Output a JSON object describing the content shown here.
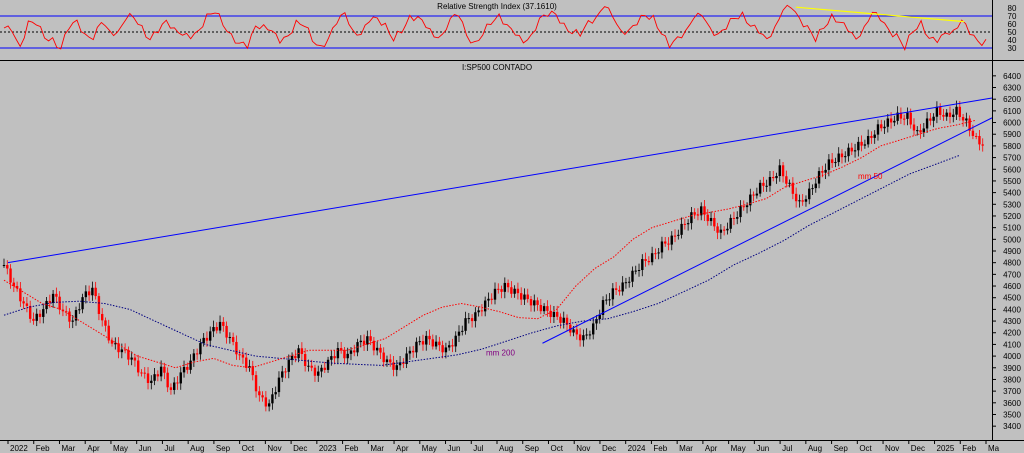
{
  "colors": {
    "background": "#c0c0c0",
    "rsi_line": "#ff0000",
    "price_up": "#000000",
    "price_down": "#ff0000",
    "trendline": "#0000ff",
    "rsi_trend": "#ffff00",
    "ma50": "#ff0000",
    "ma200": "#000080",
    "ma200_label": "#800080"
  },
  "chart_data": [
    {
      "type": "line",
      "panel": "rsi",
      "title": "Relative Strength Index (37.1610)",
      "ylim": [
        20,
        85
      ],
      "y_ticks": [
        80,
        70,
        60,
        50,
        40,
        30
      ],
      "levels": [
        {
          "value": 70,
          "style": "solid"
        },
        {
          "value": 50,
          "style": "dotted"
        },
        {
          "value": 30,
          "style": "solid"
        }
      ],
      "series": [
        {
          "values": [
            55,
            48,
            35,
            62,
            58,
            45,
            40,
            30,
            55,
            62,
            50,
            40,
            60,
            55,
            48,
            65,
            70,
            55,
            42,
            50,
            62,
            58,
            45,
            40,
            55,
            70,
            74,
            60,
            45,
            38,
            30,
            55,
            62,
            50,
            35,
            48,
            62,
            58,
            40,
            30,
            45,
            60,
            72,
            55,
            45,
            62,
            70,
            58,
            40,
            50,
            68,
            72,
            55,
            42,
            50,
            65,
            70,
            48,
            35,
            48,
            60,
            70,
            62,
            45,
            35,
            50,
            65,
            70,
            74,
            58,
            50,
            45,
            62,
            72,
            80,
            68,
            55,
            50,
            60,
            72,
            68,
            50,
            30,
            42,
            55,
            65,
            70,
            58,
            45,
            55,
            68,
            72,
            60,
            48,
            40,
            60,
            75,
            80,
            70,
            55,
            40,
            55,
            70,
            65,
            50,
            40,
            60,
            72,
            65,
            55,
            45,
            30,
            50,
            62,
            45,
            35,
            48,
            55,
            62,
            48,
            40,
            38
          ]
        }
      ],
      "annotations": [
        {
          "type": "trendline",
          "color": "yellow",
          "from": {
            "x": "2024-07",
            "y": 81
          },
          "to": {
            "x": "2025-02",
            "y": 63
          }
        }
      ]
    },
    {
      "type": "candlestick",
      "panel": "price",
      "title": "I:SP500 CONTADO",
      "ylim": [
        3350,
        6450
      ],
      "y_ticks": [
        3400,
        3500,
        3600,
        3700,
        3800,
        3900,
        4000,
        4100,
        4200,
        4300,
        4400,
        4500,
        4600,
        4700,
        4800,
        4900,
        5000,
        5100,
        5200,
        5300,
        5400,
        5500,
        5600,
        5700,
        5800,
        5900,
        6000,
        6100,
        6200,
        6300,
        6400
      ],
      "x_labels": [
        "2022",
        "Feb",
        "Mar",
        "Apr",
        "May",
        "Jun",
        "Jul",
        "Aug",
        "Sep",
        "Oct",
        "Nov",
        "Dec",
        "2023",
        "Feb",
        "Mar",
        "Apr",
        "May",
        "Jun",
        "Jul",
        "Aug",
        "Sep",
        "Oct",
        "Nov",
        "Dec",
        "2024",
        "Feb",
        "Mar",
        "Apr",
        "May",
        "Jun",
        "Jul",
        "Aug",
        "Sep",
        "Oct",
        "Nov",
        "Dec",
        "2025",
        "Feb",
        "Ma"
      ],
      "closes": [
        4780,
        4600,
        4450,
        4300,
        4400,
        4530,
        4380,
        4300,
        4500,
        4580,
        4300,
        4100,
        4050,
        3980,
        3850,
        3780,
        3900,
        3700,
        3850,
        3950,
        4100,
        4200,
        4280,
        4150,
        4000,
        3900,
        3650,
        3580,
        3800,
        3950,
        4050,
        3900,
        3850,
        3950,
        4050,
        4000,
        4100,
        4150,
        4050,
        3950,
        3900,
        4000,
        4100,
        4150,
        4100,
        4050,
        4150,
        4300,
        4350,
        4450,
        4550,
        4600,
        4550,
        4500,
        4450,
        4400,
        4350,
        4300,
        4200,
        4150,
        4250,
        4450,
        4550,
        4600,
        4700,
        4800,
        4850,
        4950,
        5000,
        5100,
        5200,
        5250,
        5150,
        5050,
        5150,
        5250,
        5350,
        5450,
        5500,
        5600,
        5450,
        5300,
        5400,
        5550,
        5650,
        5700,
        5750,
        5800,
        5850,
        5950,
        6000,
        6050,
        6050,
        5900,
        6000,
        6100,
        6050,
        6100,
        6000,
        5850,
        5800
      ],
      "overlays": [
        {
          "name": "mm 50",
          "type": "moving-average",
          "values": [
            4650,
            4550,
            4450,
            4400,
            4300,
            4200,
            4100,
            4000,
            3950,
            3900,
            3950,
            3980,
            3920,
            3900,
            3950,
            4000,
            4050,
            4050,
            4050,
            4100,
            4150,
            4250,
            4350,
            4420,
            4450,
            4420,
            4380,
            4330,
            4320,
            4400,
            4600,
            4750,
            4850,
            5000,
            5100,
            5150,
            5200,
            5230,
            5260,
            5300,
            5350,
            5450,
            5500,
            5550,
            5620,
            5700,
            5800,
            5850,
            5900,
            5950,
            5980,
            6020
          ]
        },
        {
          "name": "mm 200",
          "type": "moving-average",
          "values": [
            4350,
            4420,
            4460,
            4470,
            4450,
            4400,
            4300,
            4200,
            4100,
            4050,
            4000,
            3980,
            3960,
            3940,
            3930,
            3920,
            3950,
            3980,
            4010,
            4060,
            4130,
            4200,
            4260,
            4300,
            4320,
            4380,
            4450,
            4550,
            4650,
            4780,
            4880,
            4990,
            5120,
            5230,
            5340,
            5450,
            5560,
            5640,
            5720
          ]
        },
        {
          "type": "trendline",
          "color": "blue",
          "from": {
            "x": "2022-01",
            "y": 4800
          },
          "to": {
            "x": "2025-03",
            "y": 6210
          }
        },
        {
          "type": "trendline",
          "color": "blue",
          "from": {
            "x": "2023-10",
            "y": 4110
          },
          "to": {
            "x": "2025-03",
            "y": 6040
          }
        }
      ]
    }
  ]
}
